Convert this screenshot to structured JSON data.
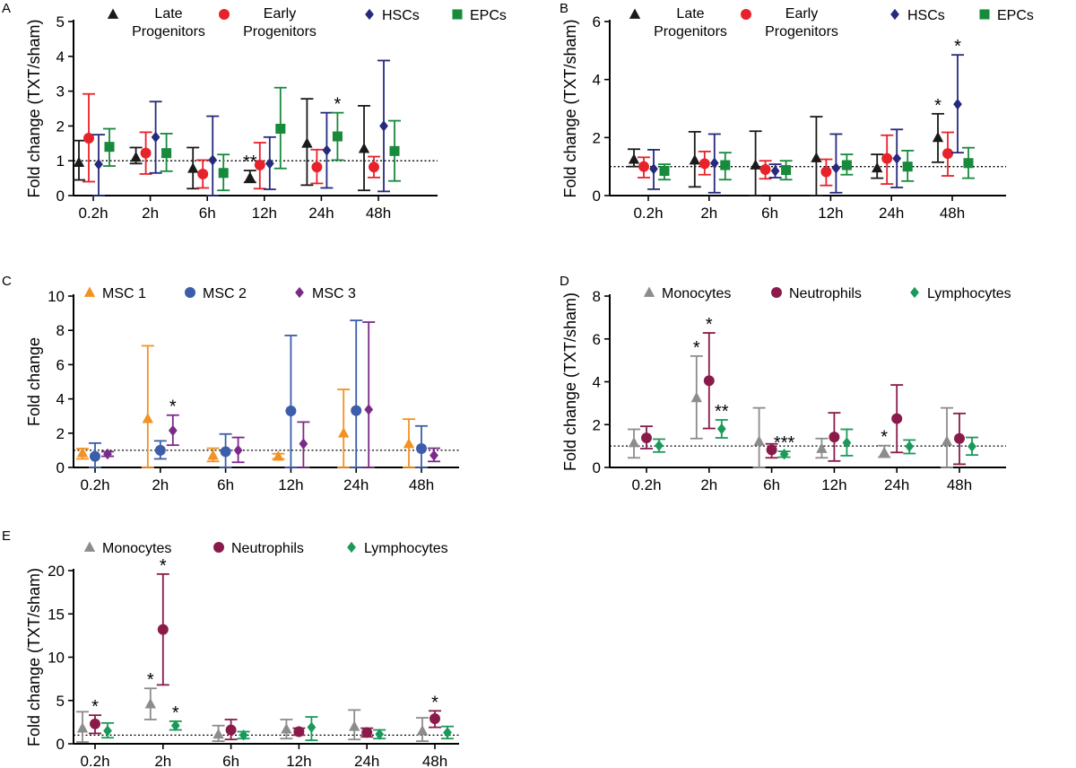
{
  "chart_data": [
    {
      "id": "A",
      "type": "scatter",
      "panel_label": "A",
      "ylabel": "Fold change (TXT/sham)",
      "xlabel": "",
      "categories": [
        "0.2h",
        "2h",
        "6h",
        "12h",
        "24h",
        "48h"
      ],
      "ylim": [
        0,
        5
      ],
      "yticks": [
        0,
        1,
        2,
        3,
        4,
        5
      ],
      "reference_line": 1,
      "legend_position": "top",
      "series": [
        {
          "name": "Late Progenitors",
          "legend_lines": [
            "Late",
            "Progenitors"
          ],
          "marker": "triangle",
          "color": "#1a1a1a",
          "values": [
            0.95,
            1.1,
            0.78,
            0.52,
            1.5,
            1.35
          ],
          "lower": [
            0.45,
            0.92,
            0.2,
            0.38,
            0.3,
            0.15
          ],
          "upper": [
            1.58,
            1.38,
            1.38,
            0.72,
            2.78,
            2.58
          ],
          "stars": [
            "",
            "",
            "",
            "**",
            "",
            ""
          ]
        },
        {
          "name": "Early Progenitors",
          "legend_lines": [
            "Early",
            "Progenitors"
          ],
          "marker": "circle",
          "color": "#e8222a",
          "values": [
            1.65,
            1.22,
            0.62,
            0.88,
            0.82,
            0.82
          ],
          "lower": [
            0.4,
            0.62,
            0.22,
            0.2,
            0.35,
            0.52
          ],
          "upper": [
            2.92,
            1.82,
            1.02,
            1.52,
            1.32,
            1.12
          ],
          "stars": [
            "",
            "",
            "",
            "",
            "",
            ""
          ]
        },
        {
          "name": "HSCs",
          "legend_lines": [
            "HSCs"
          ],
          "marker": "diamond",
          "color": "#262a7c",
          "values": [
            0.9,
            1.68,
            1.02,
            0.92,
            1.3,
            2.0
          ],
          "lower": [
            0.0,
            0.65,
            0.0,
            0.18,
            0.22,
            0.12
          ],
          "upper": [
            1.75,
            2.7,
            2.28,
            1.68,
            2.38,
            3.88
          ],
          "stars": [
            "",
            "",
            "",
            "",
            "",
            ""
          ]
        },
        {
          "name": "EPCs",
          "legend_lines": [
            "EPCs"
          ],
          "marker": "square",
          "color": "#178a3c",
          "values": [
            1.4,
            1.22,
            0.65,
            1.92,
            1.7,
            1.28
          ],
          "lower": [
            0.85,
            0.7,
            0.15,
            0.78,
            1.02,
            0.42
          ],
          "upper": [
            1.92,
            1.78,
            1.18,
            3.1,
            2.38,
            2.15
          ],
          "stars": [
            "",
            "",
            "",
            "",
            "*",
            ""
          ]
        }
      ]
    },
    {
      "id": "B",
      "type": "scatter",
      "panel_label": "B",
      "ylabel": "Fold change (TXT/sham)",
      "xlabel": "",
      "categories": [
        "0.2h",
        "2h",
        "6h",
        "12h",
        "24h",
        "48h"
      ],
      "ylim": [
        0,
        6
      ],
      "yticks": [
        0,
        2,
        4,
        6
      ],
      "reference_line": 1,
      "legend_position": "top",
      "series": [
        {
          "name": "Late Progenitors",
          "legend_lines": [
            "Late",
            "Progenitors"
          ],
          "marker": "triangle",
          "color": "#1a1a1a",
          "values": [
            1.25,
            1.22,
            1.05,
            1.3,
            0.95,
            2.0
          ],
          "lower": [
            1.0,
            0.3,
            0.0,
            0.0,
            0.6,
            1.15
          ],
          "upper": [
            1.6,
            2.2,
            2.22,
            2.72,
            1.42,
            2.82
          ],
          "stars": [
            "",
            "",
            "",
            "",
            "",
            "*"
          ]
        },
        {
          "name": "Early Progenitors",
          "legend_lines": [
            "Early",
            "Progenitors"
          ],
          "marker": "circle",
          "color": "#e8222a",
          "values": [
            1.0,
            1.1,
            0.9,
            0.82,
            1.28,
            1.45
          ],
          "lower": [
            0.62,
            0.72,
            0.58,
            0.35,
            0.4,
            0.68
          ],
          "upper": [
            1.32,
            1.52,
            1.2,
            1.25,
            2.08,
            2.18
          ],
          "stars": [
            "",
            "",
            "",
            "",
            "",
            ""
          ]
        },
        {
          "name": "HSCs",
          "legend_lines": [
            "HSCs"
          ],
          "marker": "diamond",
          "color": "#262a7c",
          "values": [
            0.92,
            1.12,
            0.85,
            0.95,
            1.28,
            3.15
          ],
          "lower": [
            0.22,
            0.1,
            0.62,
            0.1,
            0.28,
            1.48
          ],
          "upper": [
            1.58,
            2.12,
            1.08,
            2.12,
            2.28,
            4.85
          ],
          "stars": [
            "",
            "",
            "",
            "",
            "",
            "*"
          ]
        },
        {
          "name": "EPCs",
          "legend_lines": [
            "EPCs"
          ],
          "marker": "square",
          "color": "#178a3c",
          "values": [
            0.85,
            1.05,
            0.88,
            1.05,
            1.0,
            1.12
          ],
          "lower": [
            0.55,
            0.55,
            0.55,
            0.72,
            0.5,
            0.6
          ],
          "upper": [
            1.08,
            1.48,
            1.2,
            1.42,
            1.55,
            1.65
          ],
          "stars": [
            "",
            "",
            "",
            "",
            "",
            ""
          ]
        }
      ]
    },
    {
      "id": "C",
      "type": "scatter",
      "panel_label": "C",
      "ylabel": "Fold change",
      "xlabel": "",
      "categories": [
        "0.2h",
        "2h",
        "6h",
        "12h",
        "24h",
        "48h"
      ],
      "ylim": [
        0,
        10
      ],
      "yticks": [
        0,
        2,
        4,
        6,
        8,
        10
      ],
      "reference_line": 1,
      "legend_position": "top",
      "series": [
        {
          "name": "MSC 1",
          "legend_lines": [
            "MSC 1"
          ],
          "marker": "triangle",
          "color": "#f39122",
          "values": [
            0.85,
            2.85,
            0.7,
            0.65,
            2.0,
            1.38
          ],
          "lower": [
            0.5,
            0.0,
            0.35,
            0.5,
            0.0,
            0.0
          ],
          "upper": [
            1.1,
            7.1,
            1.12,
            0.8,
            4.55,
            2.82
          ],
          "stars": [
            "",
            "",
            "",
            "",
            "",
            ""
          ]
        },
        {
          "name": "MSC 2",
          "legend_lines": [
            "MSC 2"
          ],
          "marker": "circle",
          "color": "#3b5daa",
          "values": [
            0.65,
            1.0,
            0.92,
            3.3,
            3.32,
            1.1
          ],
          "lower": [
            0.0,
            0.5,
            0.0,
            0.0,
            0.0,
            0.0
          ],
          "upper": [
            1.42,
            1.55,
            1.95,
            7.7,
            8.58,
            2.42
          ],
          "stars": [
            "",
            "",
            "",
            "",
            "",
            ""
          ]
        },
        {
          "name": "MSC 3",
          "legend_lines": [
            "MSC 3"
          ],
          "marker": "diamond",
          "color": "#7b2a8a",
          "values": [
            0.78,
            2.15,
            1.0,
            1.38,
            3.38,
            0.7
          ],
          "lower": [
            0.65,
            1.3,
            0.3,
            0.0,
            0.0,
            0.35
          ],
          "upper": [
            0.92,
            3.05,
            1.75,
            2.65,
            8.48,
            1.12
          ],
          "stars": [
            "",
            "*",
            "",
            "",
            "",
            ""
          ]
        }
      ]
    },
    {
      "id": "D",
      "type": "scatter",
      "panel_label": "D",
      "ylabel": "Fold change (TXT/sham)",
      "xlabel": "",
      "categories": [
        "0.2h",
        "2h",
        "6h",
        "12h",
        "24h",
        "48h"
      ],
      "ylim": [
        0,
        8
      ],
      "yticks": [
        0,
        2,
        4,
        6,
        8
      ],
      "reference_line": 1,
      "legend_position": "top",
      "series": [
        {
          "name": "Monocytes",
          "legend_lines": [
            "Monocytes"
          ],
          "marker": "triangle",
          "color": "#8c8c8c",
          "values": [
            1.15,
            3.25,
            1.22,
            0.88,
            0.7,
            1.22
          ],
          "lower": [
            0.45,
            1.35,
            0.0,
            0.45,
            0.48,
            0.0
          ],
          "upper": [
            1.78,
            5.2,
            2.78,
            1.35,
            1.02,
            2.78
          ],
          "stars": [
            "",
            "*",
            "",
            "",
            "*",
            ""
          ]
        },
        {
          "name": "Neutrophils",
          "legend_lines": [
            "Neutrophils"
          ],
          "marker": "circle",
          "color": "#8a1a4a",
          "values": [
            1.38,
            4.05,
            0.82,
            1.42,
            2.28,
            1.35
          ],
          "lower": [
            0.88,
            1.82,
            0.45,
            0.3,
            0.7,
            0.15
          ],
          "upper": [
            1.92,
            6.28,
            1.1,
            2.55,
            3.85,
            2.52
          ],
          "stars": [
            "",
            "*",
            "",
            "",
            "",
            ""
          ]
        },
        {
          "name": "Lymphocytes",
          "legend_lines": [
            "Lymphocytes"
          ],
          "marker": "diamond",
          "color": "#1a9a5a",
          "values": [
            1.02,
            1.8,
            0.62,
            1.15,
            0.98,
            0.98
          ],
          "lower": [
            0.72,
            1.38,
            0.48,
            0.55,
            0.65,
            0.58
          ],
          "upper": [
            1.32,
            2.22,
            0.75,
            1.78,
            1.28,
            1.4
          ],
          "stars": [
            "",
            "**",
            "***",
            "",
            "",
            ""
          ]
        }
      ]
    },
    {
      "id": "E",
      "type": "scatter",
      "panel_label": "E",
      "ylabel": "Fold change (TXT/sham)",
      "xlabel": "",
      "categories": [
        "0.2h",
        "2h",
        "6h",
        "12h",
        "24h",
        "48h"
      ],
      "ylim": [
        0,
        20
      ],
      "yticks": [
        0,
        5,
        10,
        15,
        20
      ],
      "reference_line": 1,
      "legend_position": "top",
      "series": [
        {
          "name": "Monocytes",
          "legend_lines": [
            "Monocytes"
          ],
          "marker": "triangle",
          "color": "#8c8c8c",
          "values": [
            1.8,
            4.6,
            1.1,
            1.7,
            2.0,
            1.5
          ],
          "lower": [
            0.2,
            2.8,
            0.3,
            0.6,
            0.5,
            0.3
          ],
          "upper": [
            3.7,
            6.4,
            2.1,
            2.8,
            3.9,
            3.0
          ],
          "stars": [
            "",
            "*",
            "",
            "",
            "",
            ""
          ]
        },
        {
          "name": "Neutrophils",
          "legend_lines": [
            "Neutrophils"
          ],
          "marker": "circle",
          "color": "#8a1a4a",
          "values": [
            2.3,
            13.2,
            1.6,
            1.4,
            1.3,
            2.9
          ],
          "lower": [
            1.2,
            6.8,
            0.5,
            1.0,
            0.8,
            1.9
          ],
          "upper": [
            3.3,
            19.6,
            2.8,
            1.8,
            1.8,
            3.8
          ],
          "stars": [
            "*",
            "*",
            "",
            "",
            "",
            "*"
          ]
        },
        {
          "name": "Lymphocytes",
          "legend_lines": [
            "Lymphocytes"
          ],
          "marker": "diamond",
          "color": "#1a9a5a",
          "values": [
            1.5,
            2.1,
            1.0,
            1.9,
            1.1,
            1.3
          ],
          "lower": [
            0.7,
            1.6,
            0.6,
            0.4,
            0.6,
            0.6
          ],
          "upper": [
            2.4,
            2.6,
            1.4,
            3.1,
            1.6,
            2.0
          ],
          "stars": [
            "",
            "*",
            "",
            "",
            "",
            ""
          ]
        }
      ]
    }
  ]
}
